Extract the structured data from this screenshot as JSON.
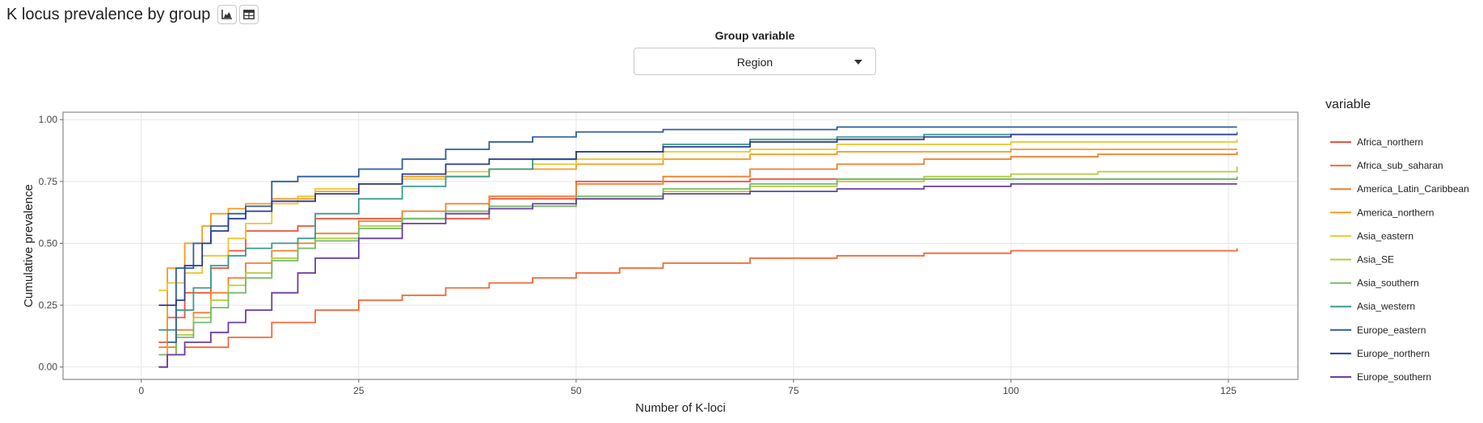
{
  "header": {
    "title": "K locus prevalence by group",
    "chart_icon": "area-chart-icon",
    "table_icon": "table-icon"
  },
  "controls": {
    "group_label": "Group variable",
    "group_value": "Region",
    "caret_icon": "caret-down-icon"
  },
  "chart_data": {
    "type": "line",
    "line_shape": "step",
    "xlabel": "Number of K-loci",
    "ylabel": "Cumulative prevalence",
    "xlim": [
      -9,
      133
    ],
    "ylim": [
      -0.05,
      1.03
    ],
    "xticks": [
      "0",
      "25",
      "50",
      "75",
      "100",
      "125"
    ],
    "yticks": [
      "0.00",
      "0.25",
      "0.50",
      "0.75",
      "1.00"
    ],
    "grid": true,
    "legend_title": "variable",
    "legend_position": "right",
    "series": [
      {
        "name": "Africa_northern",
        "color": "#e8553d",
        "x": [
          2,
          3,
          5,
          8,
          10,
          12,
          15,
          18,
          20,
          25,
          30,
          40,
          50,
          60,
          70,
          80,
          126
        ],
        "y": [
          0.1,
          0.2,
          0.3,
          0.4,
          0.47,
          0.55,
          0.55,
          0.57,
          0.6,
          0.6,
          0.6,
          0.68,
          0.75,
          0.75,
          0.76,
          0.76,
          0.76
        ]
      },
      {
        "name": "Africa_sub_saharan",
        "color": "#ee6a37",
        "x": [
          2,
          3,
          5,
          10,
          15,
          20,
          25,
          30,
          35,
          40,
          45,
          50,
          55,
          60,
          70,
          80,
          90,
          100,
          110,
          126
        ],
        "y": [
          0.0,
          0.05,
          0.08,
          0.12,
          0.18,
          0.23,
          0.27,
          0.29,
          0.32,
          0.34,
          0.36,
          0.38,
          0.4,
          0.42,
          0.44,
          0.45,
          0.46,
          0.47,
          0.47,
          0.48
        ]
      },
      {
        "name": "America_Latin_Caribbean",
        "color": "#f27f2c",
        "x": [
          2,
          4,
          6,
          8,
          10,
          12,
          15,
          18,
          20,
          25,
          30,
          35,
          40,
          50,
          60,
          70,
          80,
          90,
          100,
          110,
          126
        ],
        "y": [
          0.08,
          0.15,
          0.22,
          0.3,
          0.36,
          0.42,
          0.47,
          0.5,
          0.54,
          0.59,
          0.63,
          0.66,
          0.69,
          0.74,
          0.77,
          0.8,
          0.82,
          0.84,
          0.85,
          0.86,
          0.87
        ]
      },
      {
        "name": "America_northern",
        "color": "#f59a22",
        "x": [
          2,
          3,
          5,
          7,
          8,
          10,
          12,
          15,
          20,
          25,
          30,
          40,
          50,
          60,
          70,
          80,
          90,
          100,
          126
        ],
        "y": [
          0.0,
          0.4,
          0.5,
          0.57,
          0.62,
          0.64,
          0.66,
          0.68,
          0.71,
          0.74,
          0.77,
          0.8,
          0.82,
          0.84,
          0.86,
          0.87,
          0.87,
          0.88,
          0.88
        ]
      },
      {
        "name": "Asia_eastern",
        "color": "#efc42c",
        "x": [
          2,
          3,
          5,
          7,
          10,
          12,
          15,
          18,
          20,
          25,
          30,
          35,
          40,
          45,
          50,
          60,
          70,
          80,
          90,
          100,
          126
        ],
        "y": [
          0.31,
          0.34,
          0.38,
          0.45,
          0.52,
          0.58,
          0.66,
          0.69,
          0.72,
          0.74,
          0.76,
          0.79,
          0.8,
          0.82,
          0.84,
          0.87,
          0.88,
          0.9,
          0.9,
          0.91,
          0.92
        ]
      },
      {
        "name": "Asia_SE",
        "color": "#b3cb3f",
        "x": [
          2,
          4,
          6,
          8,
          10,
          12,
          15,
          18,
          20,
          25,
          30,
          35,
          40,
          50,
          60,
          70,
          80,
          90,
          100,
          110,
          126
        ],
        "y": [
          0.05,
          0.13,
          0.2,
          0.27,
          0.33,
          0.38,
          0.44,
          0.48,
          0.52,
          0.57,
          0.6,
          0.63,
          0.65,
          0.68,
          0.71,
          0.73,
          0.75,
          0.77,
          0.78,
          0.79,
          0.81
        ]
      },
      {
        "name": "Asia_southern",
        "color": "#78b86b",
        "x": [
          2,
          4,
          6,
          8,
          10,
          12,
          15,
          18,
          20,
          25,
          30,
          35,
          40,
          50,
          60,
          70,
          80,
          126
        ],
        "y": [
          0.05,
          0.12,
          0.18,
          0.24,
          0.3,
          0.36,
          0.43,
          0.48,
          0.51,
          0.56,
          0.6,
          0.63,
          0.65,
          0.69,
          0.72,
          0.74,
          0.76,
          0.77
        ]
      },
      {
        "name": "Asia_western",
        "color": "#3d9a8c",
        "x": [
          2,
          4,
          6,
          8,
          10,
          12,
          15,
          18,
          20,
          25,
          30,
          35,
          40,
          45,
          50,
          60,
          70,
          80,
          90,
          100,
          126
        ],
        "y": [
          0.15,
          0.23,
          0.32,
          0.41,
          0.45,
          0.48,
          0.5,
          0.52,
          0.62,
          0.68,
          0.73,
          0.77,
          0.8,
          0.84,
          0.87,
          0.9,
          0.92,
          0.93,
          0.94,
          0.94,
          0.95
        ]
      },
      {
        "name": "Europe_eastern",
        "color": "#2e5f9c",
        "x": [
          3,
          4,
          6,
          8,
          10,
          12,
          15,
          18,
          20,
          25,
          30,
          35,
          40,
          45,
          50,
          60,
          70,
          80,
          126
        ],
        "y": [
          0.1,
          0.4,
          0.5,
          0.57,
          0.62,
          0.65,
          0.75,
          0.77,
          0.77,
          0.8,
          0.84,
          0.88,
          0.91,
          0.93,
          0.95,
          0.96,
          0.96,
          0.97,
          0.97
        ]
      },
      {
        "name": "Europe_northern",
        "color": "#2b3d92",
        "x": [
          2,
          4,
          5,
          7,
          8,
          10,
          12,
          15,
          20,
          25,
          30,
          35,
          40,
          50,
          60,
          70,
          80,
          90,
          100,
          126
        ],
        "y": [
          0.25,
          0.27,
          0.41,
          0.5,
          0.55,
          0.6,
          0.63,
          0.67,
          0.7,
          0.74,
          0.78,
          0.82,
          0.84,
          0.87,
          0.89,
          0.91,
          0.92,
          0.93,
          0.94,
          0.94
        ]
      },
      {
        "name": "Europe_southern",
        "color": "#6a3fa0",
        "x": [
          2,
          3,
          5,
          8,
          10,
          12,
          15,
          18,
          20,
          25,
          30,
          35,
          40,
          45,
          50,
          60,
          70,
          80,
          90,
          100,
          110,
          126
        ],
        "y": [
          0.0,
          0.05,
          0.1,
          0.14,
          0.18,
          0.23,
          0.3,
          0.38,
          0.44,
          0.52,
          0.58,
          0.62,
          0.64,
          0.66,
          0.68,
          0.7,
          0.71,
          0.72,
          0.73,
          0.74,
          0.74,
          0.74
        ]
      }
    ]
  }
}
